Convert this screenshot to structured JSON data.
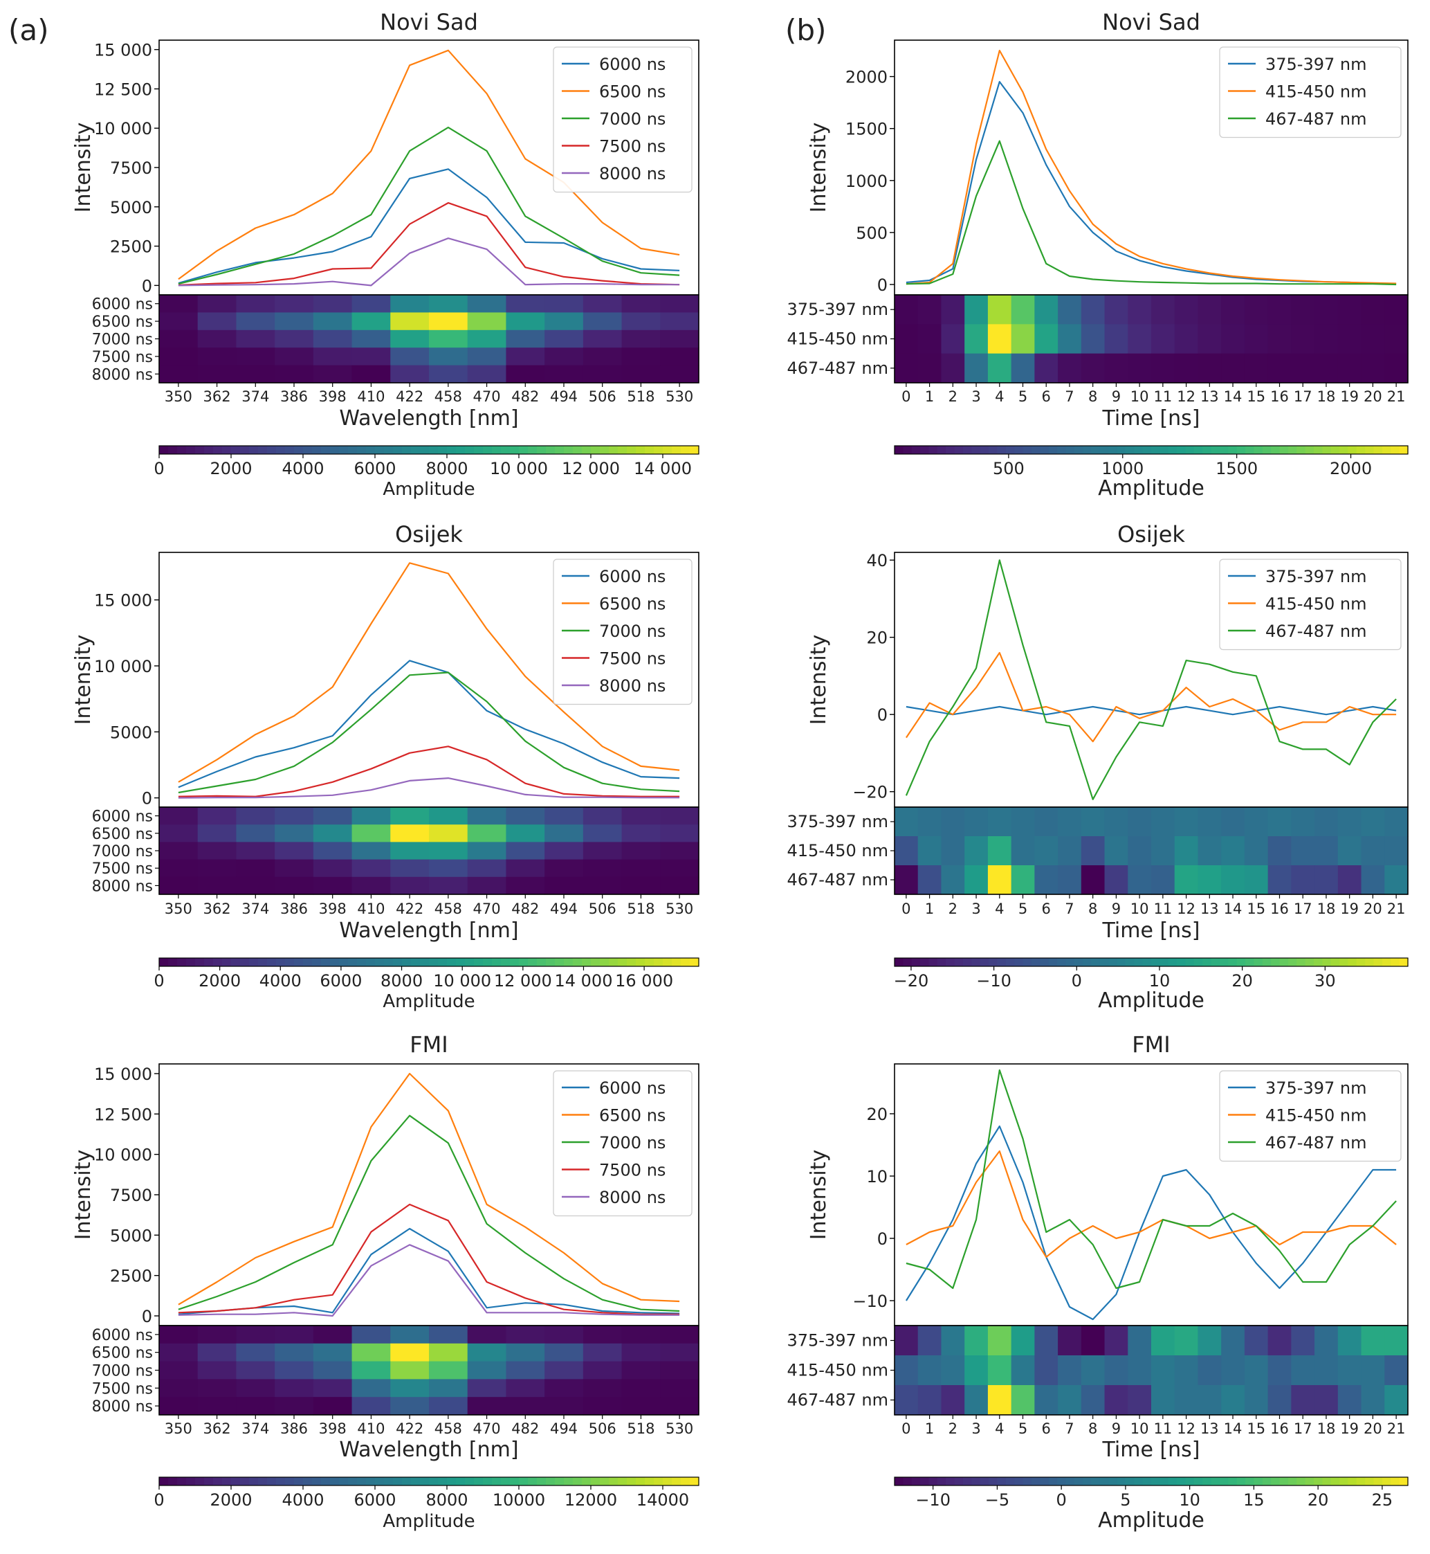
{
  "colors": {
    "series": [
      "#1f77b4",
      "#ff7f0e",
      "#2ca02c",
      "#d62728",
      "#9467bd"
    ],
    "viridis": [
      "#440154",
      "#482878",
      "#3e4989",
      "#31688e",
      "#26828e",
      "#1f9e89",
      "#35b779",
      "#6ece58",
      "#b5de2b",
      "#fde725"
    ]
  },
  "panel_labels": [
    "(a)",
    "(b)"
  ],
  "chart_data": [
    {
      "id": "a-novi-sad",
      "type": "line",
      "title": "Novi Sad",
      "xlabel": "Wavelength [nm]",
      "ylabel": "Intensity",
      "categories": [
        "350",
        "362",
        "374",
        "386",
        "398",
        "410",
        "422",
        "458",
        "470",
        "482",
        "494",
        "506",
        "518",
        "530"
      ],
      "ylim": [
        -600,
        15600
      ],
      "yticks": [
        0,
        2500,
        5000,
        7500,
        10000,
        12500,
        15000
      ],
      "ytick_labels": [
        "0",
        "2500",
        "5000",
        "7500",
        "10 000",
        "12 500",
        "15 000"
      ],
      "legend_position": "top-right",
      "series": [
        {
          "name": "6000 ns",
          "values": [
            150,
            850,
            1450,
            1750,
            2150,
            3100,
            6800,
            7400,
            5600,
            2750,
            2700,
            1700,
            1050,
            950
          ]
        },
        {
          "name": "6500 ns",
          "values": [
            400,
            2200,
            3650,
            4500,
            5850,
            8550,
            14000,
            14950,
            12200,
            8050,
            6550,
            4000,
            2350,
            1950
          ]
        },
        {
          "name": "7000 ns",
          "values": [
            100,
            700,
            1350,
            2000,
            3150,
            4500,
            8550,
            10050,
            8550,
            4400,
            3000,
            1550,
            800,
            650
          ]
        },
        {
          "name": "7500 ns",
          "values": [
            20,
            120,
            180,
            450,
            1050,
            1100,
            3900,
            5250,
            4400,
            1150,
            550,
            300,
            100,
            50
          ]
        },
        {
          "name": "8000 ns",
          "values": [
            0,
            30,
            50,
            100,
            250,
            0,
            2050,
            3000,
            2300,
            50,
            100,
            100,
            50,
            50
          ]
        }
      ],
      "heatmap_rows": [
        "6000 ns",
        "6500 ns",
        "7000 ns",
        "7500 ns",
        "8000 ns"
      ],
      "colorbar": {
        "label": "Amplitude",
        "min": 0,
        "max": 15000,
        "ticks": [
          0,
          2000,
          4000,
          6000,
          8000,
          10000,
          12000,
          14000
        ],
        "tick_labels": [
          "0",
          "2000",
          "4000",
          "6000",
          "8000",
          "10 000",
          "12 000",
          "14 000"
        ]
      }
    },
    {
      "id": "b-novi-sad",
      "type": "line",
      "title": "Novi Sad",
      "xlabel": "Time [ns]",
      "ylabel": "Intensity",
      "categories": [
        "0",
        "1",
        "2",
        "3",
        "4",
        "5",
        "6",
        "7",
        "8",
        "9",
        "10",
        "11",
        "12",
        "13",
        "14",
        "15",
        "16",
        "17",
        "18",
        "19",
        "20",
        "21"
      ],
      "ylim": [
        -100,
        2350
      ],
      "yticks": [
        0,
        500,
        1000,
        1500,
        2000
      ],
      "ytick_labels": [
        "0",
        "500",
        "1000",
        "1500",
        "2000"
      ],
      "legend_position": "top-right",
      "series": [
        {
          "name": "375-397 nm",
          "values": [
            20,
            40,
            150,
            1200,
            1950,
            1650,
            1150,
            750,
            500,
            320,
            230,
            170,
            130,
            100,
            70,
            50,
            40,
            30,
            25,
            20,
            10,
            5
          ]
        },
        {
          "name": "415-450 nm",
          "values": [
            5,
            20,
            200,
            1350,
            2250,
            1850,
            1300,
            900,
            580,
            390,
            270,
            200,
            150,
            110,
            80,
            60,
            45,
            35,
            25,
            20,
            15,
            10
          ]
        },
        {
          "name": "467-487 nm",
          "values": [
            5,
            10,
            100,
            850,
            1380,
            730,
            200,
            80,
            50,
            35,
            25,
            20,
            15,
            10,
            10,
            10,
            5,
            5,
            5,
            5,
            5,
            0
          ]
        }
      ],
      "heatmap_rows": [
        "375-397 nm",
        "415-450 nm",
        "467-487 nm"
      ],
      "colorbar": {
        "label": "Amplitude",
        "min": 0,
        "max": 2250,
        "ticks": [
          500,
          1000,
          1500,
          2000
        ],
        "tick_labels": [
          "500",
          "1000",
          "1500",
          "2000"
        ]
      }
    },
    {
      "id": "a-osijek",
      "type": "line",
      "title": "Osijek",
      "xlabel": "Wavelength [nm]",
      "ylabel": "Intensity",
      "categories": [
        "350",
        "362",
        "374",
        "386",
        "398",
        "410",
        "422",
        "458",
        "470",
        "482",
        "494",
        "506",
        "518",
        "530"
      ],
      "ylim": [
        -700,
        18600
      ],
      "yticks": [
        0,
        5000,
        10000,
        15000
      ],
      "ytick_labels": [
        "0",
        "5000",
        "10 000",
        "15 000"
      ],
      "legend_position": "top-right",
      "series": [
        {
          "name": "6000 ns",
          "values": [
            800,
            2000,
            3100,
            3800,
            4700,
            7800,
            10400,
            9500,
            6600,
            5200,
            4100,
            2700,
            1600,
            1500
          ]
        },
        {
          "name": "6500 ns",
          "values": [
            1200,
            2900,
            4800,
            6200,
            8400,
            13200,
            17800,
            17000,
            12800,
            9200,
            6500,
            3900,
            2400,
            2100
          ]
        },
        {
          "name": "7000 ns",
          "values": [
            400,
            900,
            1400,
            2400,
            4200,
            6700,
            9300,
            9500,
            7300,
            4300,
            2300,
            1100,
            650,
            500
          ]
        },
        {
          "name": "7500 ns",
          "values": [
            100,
            150,
            100,
            500,
            1200,
            2200,
            3400,
            3900,
            2900,
            1100,
            300,
            150,
            100,
            100
          ]
        },
        {
          "name": "8000 ns",
          "values": [
            0,
            30,
            30,
            100,
            200,
            600,
            1300,
            1500,
            900,
            250,
            50,
            50,
            20,
            20
          ]
        }
      ],
      "heatmap_rows": [
        "6000 ns",
        "6500 ns",
        "7000 ns",
        "7500 ns",
        "8000 ns"
      ],
      "colorbar": {
        "label": "Amplitude",
        "min": 0,
        "max": 17800,
        "ticks": [
          0,
          2000,
          4000,
          6000,
          8000,
          10000,
          12000,
          14000,
          16000
        ],
        "tick_labels": [
          "0",
          "2000",
          "4000",
          "6000",
          "8000",
          "10 000",
          "12 000",
          "14 000",
          "16 000"
        ]
      }
    },
    {
      "id": "b-osijek",
      "type": "line",
      "title": "Osijek",
      "xlabel": "Time [ns]",
      "ylabel": "Intensity",
      "categories": [
        "0",
        "1",
        "2",
        "3",
        "4",
        "5",
        "6",
        "7",
        "8",
        "9",
        "10",
        "11",
        "12",
        "13",
        "14",
        "15",
        "16",
        "17",
        "18",
        "19",
        "20",
        "21"
      ],
      "ylim": [
        -24,
        42
      ],
      "yticks": [
        -20,
        0,
        20,
        40
      ],
      "ytick_labels": [
        "−20",
        "0",
        "20",
        "40"
      ],
      "legend_position": "top-right",
      "series": [
        {
          "name": "375-397 nm",
          "values": [
            2,
            1,
            0,
            1,
            2,
            1,
            0,
            1,
            2,
            1,
            0,
            1,
            2,
            1,
            0,
            1,
            2,
            1,
            0,
            1,
            2,
            1
          ]
        },
        {
          "name": "415-450 nm",
          "values": [
            -6,
            3,
            0,
            7,
            16,
            1,
            2,
            0,
            -7,
            2,
            -1,
            1,
            7,
            2,
            4,
            1,
            -4,
            -2,
            -2,
            2,
            0,
            0
          ]
        },
        {
          "name": "467-487 nm",
          "values": [
            -21,
            -7,
            2,
            12,
            40,
            18,
            -2,
            -3,
            -22,
            -11,
            -2,
            -3,
            14,
            13,
            11,
            10,
            -7,
            -9,
            -9,
            -13,
            -2,
            4
          ]
        }
      ],
      "heatmap_rows": [
        "375-397 nm",
        "415-450 nm",
        "467-487 nm"
      ],
      "colorbar": {
        "label": "Amplitude",
        "min": -22,
        "max": 40,
        "ticks": [
          -20,
          -10,
          0,
          10,
          20,
          30
        ],
        "tick_labels": [
          "−20",
          "−10",
          "0",
          "10",
          "20",
          "30"
        ]
      }
    },
    {
      "id": "a-fmi",
      "type": "line",
      "title": "FMI",
      "xlabel": "Wavelength [nm]",
      "ylabel": "Intensity",
      "categories": [
        "350",
        "362",
        "374",
        "386",
        "398",
        "410",
        "422",
        "458",
        "470",
        "482",
        "494",
        "506",
        "518",
        "530"
      ],
      "ylim": [
        -600,
        15600
      ],
      "yticks": [
        0,
        2500,
        5000,
        7500,
        10000,
        12500,
        15000
      ],
      "ytick_labels": [
        "0",
        "2500",
        "5000",
        "7500",
        "10 000",
        "12 500",
        "15 000"
      ],
      "legend_position": "top-right",
      "series": [
        {
          "name": "6000 ns",
          "values": [
            100,
            300,
            500,
            600,
            200,
            3800,
            5400,
            4000,
            500,
            800,
            700,
            300,
            200,
            150
          ]
        },
        {
          "name": "6500 ns",
          "values": [
            700,
            2100,
            3600,
            4600,
            5500,
            11700,
            15000,
            12700,
            6900,
            5500,
            3900,
            2000,
            1000,
            900
          ]
        },
        {
          "name": "7000 ns",
          "values": [
            400,
            1200,
            2100,
            3300,
            4400,
            9600,
            12400,
            10700,
            5700,
            3900,
            2300,
            1000,
            400,
            300
          ]
        },
        {
          "name": "7500 ns",
          "values": [
            200,
            300,
            500,
            1000,
            1300,
            5200,
            6900,
            5900,
            2100,
            1100,
            400,
            200,
            100,
            100
          ]
        },
        {
          "name": "8000 ns",
          "values": [
            50,
            100,
            100,
            200,
            0,
            3100,
            4400,
            3400,
            200,
            200,
            200,
            100,
            50,
            50
          ]
        }
      ],
      "heatmap_rows": [
        "6000 ns",
        "6500 ns",
        "7000 ns",
        "7500 ns",
        "8000 ns"
      ],
      "colorbar": {
        "label": "Amplitude",
        "min": 0,
        "max": 15000,
        "ticks": [
          0,
          2000,
          4000,
          6000,
          8000,
          10000,
          12000,
          14000
        ],
        "tick_labels": [
          "0",
          "2000",
          "4000",
          "6000",
          "8000",
          "10000",
          "12000",
          "14000"
        ]
      }
    },
    {
      "id": "b-fmi",
      "type": "line",
      "title": "FMI",
      "xlabel": "Time [ns]",
      "ylabel": "Intensity",
      "categories": [
        "0",
        "1",
        "2",
        "3",
        "4",
        "5",
        "6",
        "7",
        "8",
        "9",
        "10",
        "11",
        "12",
        "13",
        "14",
        "15",
        "16",
        "17",
        "18",
        "19",
        "20",
        "21"
      ],
      "ylim": [
        -14,
        28
      ],
      "yticks": [
        -10,
        0,
        10,
        20
      ],
      "ytick_labels": [
        "−10",
        "0",
        "10",
        "20"
      ],
      "legend_position": "top-right",
      "series": [
        {
          "name": "375-397 nm",
          "values": [
            -10,
            -4,
            3,
            12,
            18,
            9,
            -3,
            -11,
            -13,
            -9,
            1,
            10,
            11,
            7,
            1,
            -4,
            -8,
            -4,
            1,
            6,
            11,
            11
          ]
        },
        {
          "name": "415-450 nm",
          "values": [
            -1,
            1,
            2,
            9,
            14,
            3,
            -3,
            0,
            2,
            0,
            1,
            3,
            2,
            0,
            1,
            2,
            -1,
            1,
            1,
            2,
            2,
            -1
          ]
        },
        {
          "name": "467-487 nm",
          "values": [
            -4,
            -5,
            -8,
            3,
            27,
            16,
            1,
            3,
            -1,
            -8,
            -7,
            3,
            2,
            2,
            4,
            2,
            -2,
            -7,
            -7,
            -1,
            2,
            6
          ]
        }
      ],
      "heatmap_rows": [
        "375-397 nm",
        "415-450 nm",
        "467-487 nm"
      ],
      "colorbar": {
        "label": "Amplitude",
        "min": -13,
        "max": 27,
        "ticks": [
          -10,
          -5,
          0,
          5,
          10,
          15,
          20,
          25
        ],
        "tick_labels": [
          "−10",
          "−5",
          "0",
          "5",
          "10",
          "15",
          "20",
          "25"
        ]
      }
    }
  ]
}
